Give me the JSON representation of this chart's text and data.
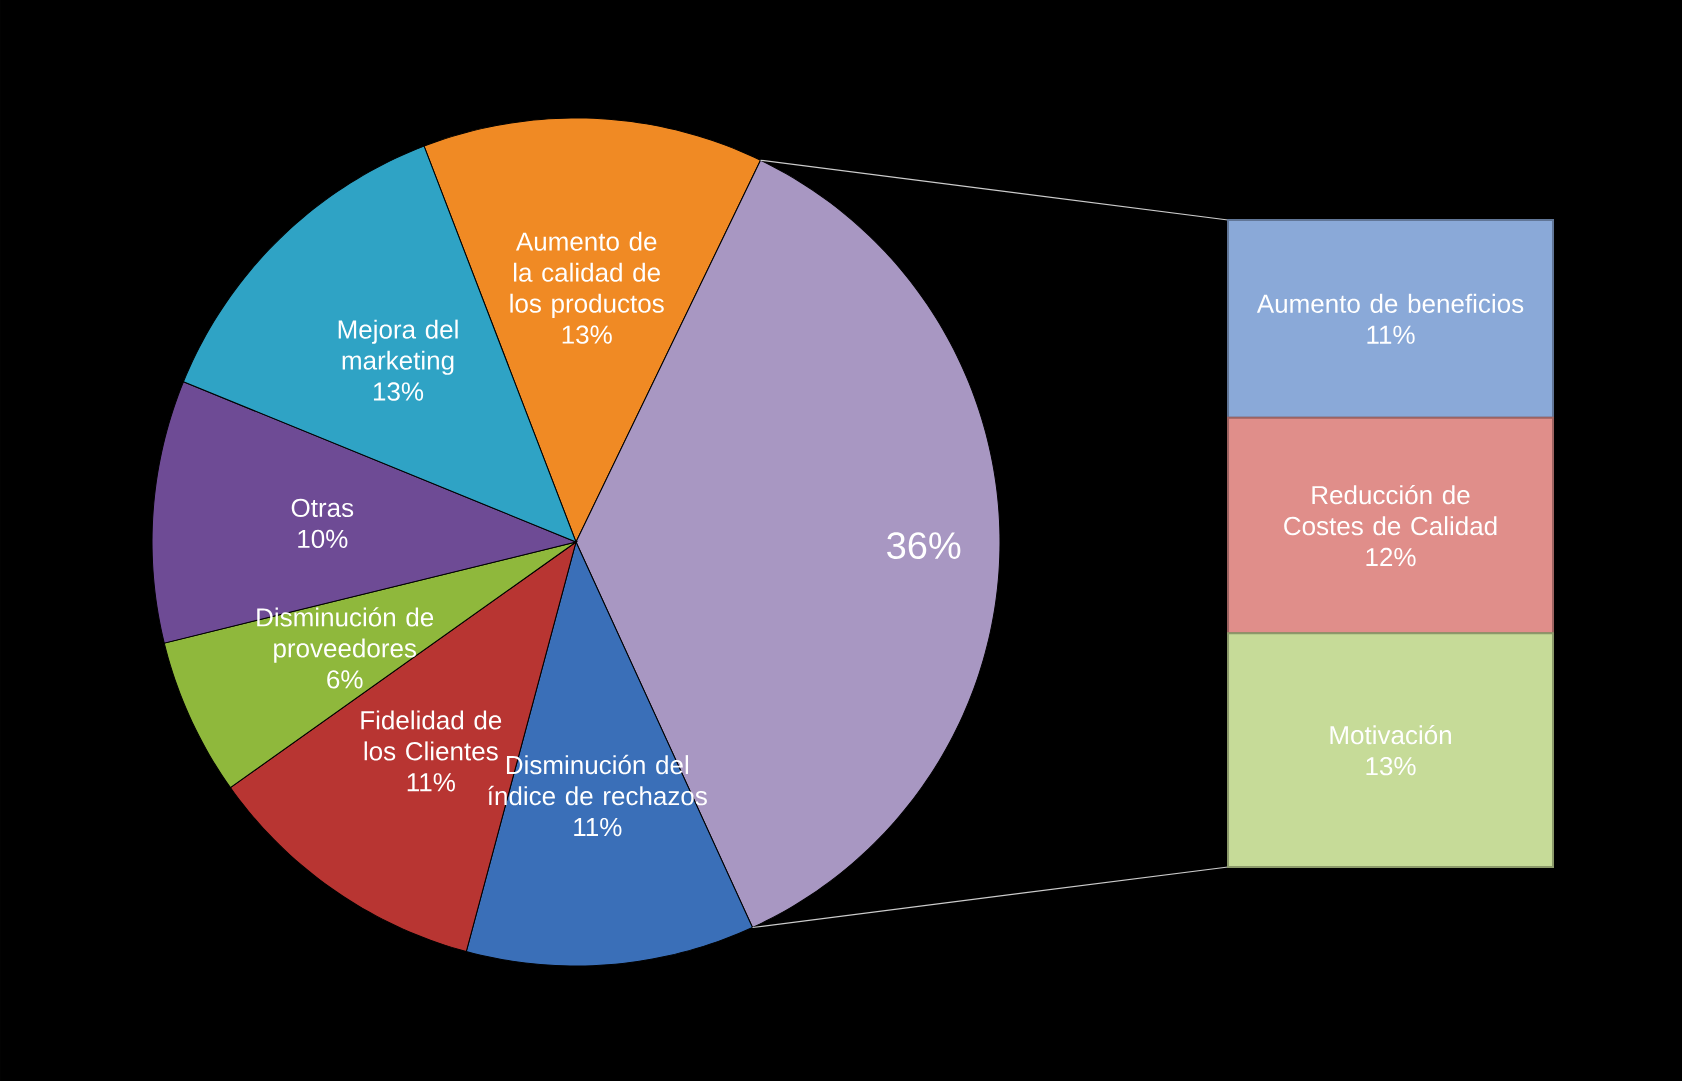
{
  "chart_data": [
    {
      "type": "pie",
      "categories": [
        "Aumento de la calidad de los productos",
        null,
        "Disminución del índice de rechazos",
        "Fidelidad de los Clientes",
        "Disminución de proveedores",
        "Otras",
        "Mejora del marketing"
      ],
      "values": [
        13,
        36,
        11,
        11,
        6,
        10,
        13
      ],
      "value_labels": [
        "13%",
        "36%",
        "11%",
        "11%",
        "6%",
        "10%",
        "13%"
      ],
      "colors": [
        "#f08a24",
        "#a897c2",
        "#3a6fb8",
        "#b83532",
        "#8fb83c",
        "#6e4b95",
        "#2fa3c5"
      ]
    },
    {
      "type": "bar",
      "stacked": true,
      "categories": [
        null
      ],
      "series": [
        {
          "name": "Motivación",
          "color": "#c6db98",
          "values": [
            13
          ],
          "value_labels": [
            "13%"
          ]
        },
        {
          "name": "Reducción de Costes de Calidad",
          "color": "#e08e8a",
          "values": [
            12
          ],
          "value_labels": [
            "12%"
          ]
        },
        {
          "name": "Aumento de beneficios",
          "color": "#8aa9d8",
          "values": [
            11
          ],
          "value_labels": [
            "11%"
          ]
        }
      ]
    }
  ]
}
